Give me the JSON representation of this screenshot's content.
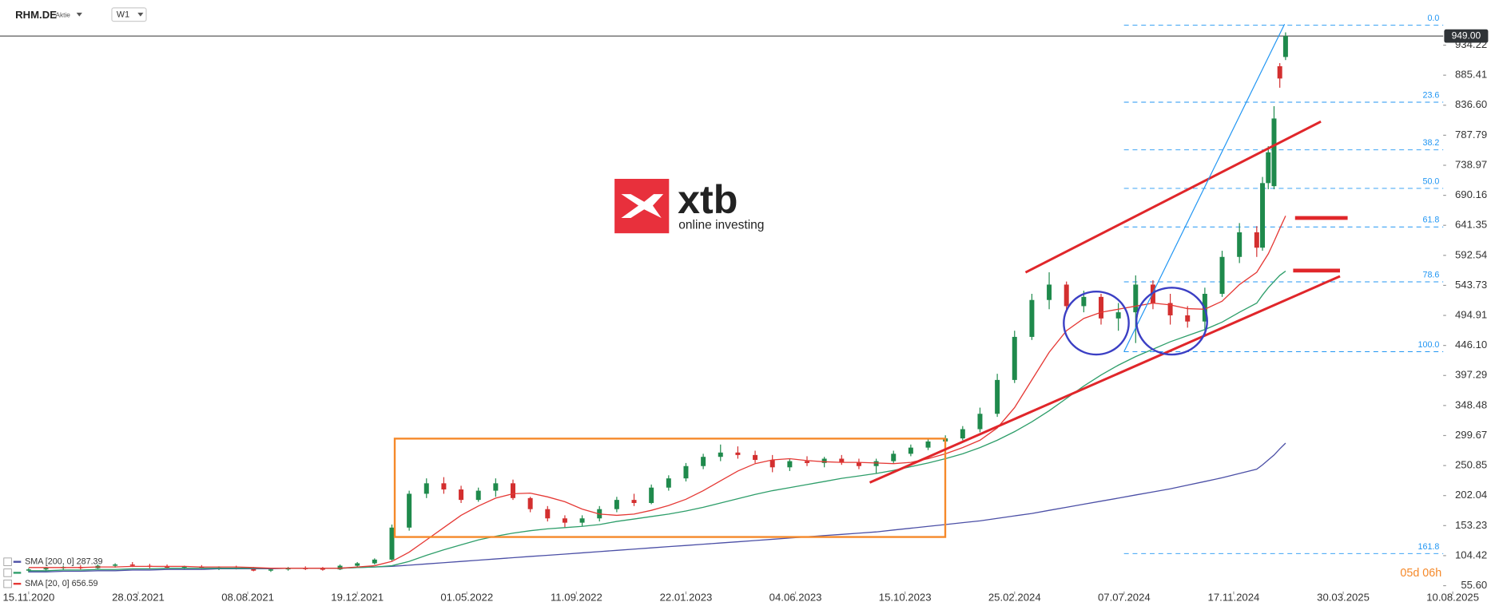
{
  "header": {
    "symbol": "RHM.DE",
    "instrument": "Aktie",
    "interval": "W1"
  },
  "logo": {
    "name": "xtb",
    "tagline": "online investing"
  },
  "countdown": "05d 06h",
  "chart_data": {
    "type": "candlestick",
    "x": [
      "15.11.2020",
      "06.12.2020",
      "27.12.2020",
      "17.01.2021",
      "07.02.2021",
      "28.02.2021",
      "21.03.2021",
      "11.04.2021",
      "02.05.2021",
      "23.05.2021",
      "13.06.2021",
      "04.07.2021",
      "25.07.2021",
      "15.08.2021",
      "05.09.2021",
      "26.09.2021",
      "17.10.2021",
      "07.11.2021",
      "28.11.2021",
      "19.12.2021",
      "09.01.2022",
      "30.01.2022",
      "20.02.2022",
      "13.03.2022",
      "03.04.2022",
      "24.04.2022",
      "15.05.2022",
      "05.06.2022",
      "26.06.2022",
      "17.07.2022",
      "07.08.2022",
      "28.08.2022",
      "18.09.2022",
      "09.10.2022",
      "30.10.2022",
      "20.11.2022",
      "11.12.2022",
      "01.01.2023",
      "22.01.2023",
      "12.02.2023",
      "05.03.2023",
      "26.03.2023",
      "16.04.2023",
      "07.05.2023",
      "28.05.2023",
      "18.06.2023",
      "09.07.2023",
      "30.07.2023",
      "20.08.2023",
      "10.09.2023",
      "01.10.2023",
      "22.10.2023",
      "12.11.2023",
      "03.12.2023",
      "24.12.2023",
      "14.01.2024",
      "04.02.2024",
      "25.02.2024",
      "17.03.2024",
      "07.04.2024",
      "28.04.2024",
      "19.05.2024",
      "09.06.2024",
      "30.06.2024",
      "21.07.2024",
      "11.08.2024",
      "01.09.2024",
      "22.09.2024",
      "13.10.2024",
      "03.11.2024",
      "24.11.2024",
      "15.12.2024",
      "22.12.2024",
      "29.12.2024",
      "05.01.2025",
      "12.01.2025",
      "19.01.2025"
    ],
    "open": [
      80,
      82,
      84,
      86,
      84,
      88,
      90,
      88,
      87,
      85,
      86,
      84,
      85,
      83,
      80,
      82,
      84,
      83,
      82,
      88,
      92,
      98,
      150,
      205,
      222,
      212,
      195,
      210,
      222,
      198,
      180,
      165,
      158,
      165,
      180,
      195,
      190,
      215,
      230,
      250,
      265,
      272,
      268,
      260,
      248,
      258,
      255,
      262,
      256,
      250,
      258,
      270,
      280,
      290,
      295,
      310,
      335,
      390,
      460,
      520,
      545,
      510,
      525,
      490,
      500,
      545,
      515,
      495,
      485,
      530,
      590,
      630,
      605,
      710,
      705,
      900,
      915
    ],
    "high": [
      84,
      86,
      88,
      89,
      90,
      92,
      94,
      91,
      90,
      88,
      89,
      87,
      88,
      86,
      84,
      86,
      87,
      86,
      90,
      94,
      100,
      155,
      210,
      230,
      232,
      218,
      215,
      230,
      228,
      200,
      185,
      170,
      170,
      185,
      200,
      205,
      220,
      235,
      255,
      270,
      285,
      282,
      275,
      268,
      262,
      266,
      265,
      268,
      262,
      262,
      275,
      285,
      295,
      300,
      315,
      345,
      400,
      470,
      530,
      565,
      550,
      535,
      530,
      515,
      560,
      552,
      530,
      510,
      540,
      600,
      645,
      640,
      720,
      770,
      835,
      905,
      955
    ],
    "low": [
      77,
      79,
      81,
      82,
      83,
      85,
      86,
      84,
      83,
      82,
      83,
      81,
      82,
      79,
      78,
      80,
      81,
      80,
      81,
      86,
      90,
      96,
      145,
      198,
      205,
      190,
      192,
      200,
      195,
      175,
      160,
      150,
      152,
      160,
      175,
      185,
      188,
      210,
      225,
      245,
      258,
      262,
      255,
      240,
      242,
      250,
      248,
      252,
      245,
      238,
      255,
      266,
      276,
      285,
      292,
      305,
      330,
      385,
      455,
      505,
      500,
      500,
      480,
      470,
      450,
      505,
      480,
      475,
      470,
      525,
      580,
      590,
      600,
      700,
      700,
      865,
      910
    ],
    "close": [
      82,
      84,
      86,
      84,
      88,
      90,
      88,
      87,
      85,
      86,
      84,
      85,
      83,
      80,
      82,
      84,
      83,
      82,
      88,
      92,
      98,
      150,
      205,
      222,
      212,
      195,
      210,
      222,
      198,
      180,
      165,
      158,
      165,
      180,
      195,
      190,
      215,
      230,
      250,
      265,
      272,
      268,
      260,
      248,
      258,
      255,
      262,
      256,
      250,
      258,
      270,
      280,
      290,
      295,
      310,
      335,
      390,
      460,
      520,
      545,
      510,
      525,
      490,
      500,
      545,
      515,
      495,
      485,
      530,
      590,
      630,
      605,
      710,
      760,
      815,
      880,
      949
    ],
    "colors": {
      "up": "#1f8a4c",
      "down": "#d32f2f"
    },
    "lines": [
      {
        "name": "SMA [200, 0] 287.39",
        "color": "#4b4fa6",
        "values": [
          78,
          78,
          79,
          79,
          80,
          80,
          81,
          81,
          82,
          82,
          82,
          83,
          83,
          83,
          83,
          84,
          84,
          84,
          84,
          85,
          86,
          87,
          89,
          91,
          93,
          95,
          97,
          99,
          101,
          103,
          105,
          107,
          109,
          111,
          113,
          115,
          117,
          119,
          121,
          123,
          125,
          127,
          129,
          131,
          133,
          135,
          137,
          139,
          141,
          143,
          146,
          149,
          152,
          155,
          158,
          161,
          165,
          169,
          173,
          178,
          183,
          188,
          193,
          198,
          203,
          208,
          213,
          219,
          225,
          231,
          238,
          245,
          252,
          260,
          268,
          278,
          287.39
        ]
      },
      {
        "color": "#2e9e6a",
        "values": [
          80,
          80,
          81,
          81,
          82,
          82,
          83,
          83,
          84,
          84,
          84,
          84,
          84,
          84,
          84,
          84,
          84,
          84,
          84,
          85,
          86,
          88,
          95,
          105,
          114,
          122,
          130,
          136,
          141,
          145,
          148,
          150,
          152,
          155,
          160,
          164,
          168,
          172,
          177,
          183,
          190,
          197,
          204,
          210,
          215,
          220,
          225,
          230,
          234,
          238,
          243,
          249,
          255,
          262,
          270,
          280,
          292,
          306,
          322,
          340,
          360,
          380,
          398,
          414,
          428,
          440,
          452,
          462,
          472,
          484,
          500,
          515,
          528,
          540,
          550,
          560,
          567
        ]
      },
      {
        "name": "SMA [20, 0] 656.59",
        "color": "#e53935",
        "values": [
          85,
          85,
          85,
          85,
          86,
          86,
          87,
          87,
          87,
          87,
          86,
          86,
          86,
          85,
          84,
          84,
          84,
          84,
          84,
          86,
          88,
          95,
          110,
          130,
          150,
          170,
          185,
          198,
          205,
          206,
          200,
          192,
          180,
          172,
          170,
          172,
          178,
          186,
          196,
          210,
          226,
          242,
          254,
          260,
          262,
          259,
          257,
          256,
          256,
          255,
          254,
          256,
          262,
          270,
          280,
          292,
          312,
          345,
          390,
          435,
          470,
          490,
          500,
          505,
          510,
          515,
          512,
          506,
          505,
          518,
          545,
          565,
          580,
          595,
          615,
          636,
          656.59
        ]
      }
    ],
    "fib_levels": [
      {
        "value": 966.8,
        "label": "0.0"
      },
      {
        "value": 841.5,
        "label": "23.6"
      },
      {
        "value": 764.0,
        "label": "38.2"
      },
      {
        "value": 701.4,
        "label": "50.0"
      },
      {
        "value": 638.7,
        "label": "61.8"
      },
      {
        "value": 549.5,
        "label": "78.6"
      },
      {
        "value": 435.9,
        "label": "100.0"
      },
      {
        "value": 107.8,
        "label": "161.8"
      }
    ],
    "last_price": {
      "value": 949,
      "label": "949.00"
    },
    "xlim": [
      "15.11.2020",
      "10.08.2025"
    ],
    "xticks": [
      "15.11.2020",
      "28.03.2021",
      "08.08.2021",
      "19.12.2021",
      "01.05.2022",
      "11.09.2022",
      "22.01.2023",
      "04.06.2023",
      "15.10.2023",
      "25.02.2024",
      "07.07.2024",
      "17.11.2024",
      "30.03.2025",
      "10.08.2025"
    ],
    "ylim": [
      41.6,
      1007.2
    ],
    "yticks": [
      {
        "value": 55.6,
        "label": "55.60"
      },
      104.42,
      153.23,
      202.04,
      250.85,
      299.67,
      348.48,
      397.29,
      {
        "value": 446.1,
        "label": "446.10"
      },
      494.91,
      543.73,
      592.54,
      641.35,
      690.16,
      738.97,
      787.79,
      {
        "value": 836.6,
        "label": "836.60"
      },
      885.41,
      934.22
    ]
  }
}
